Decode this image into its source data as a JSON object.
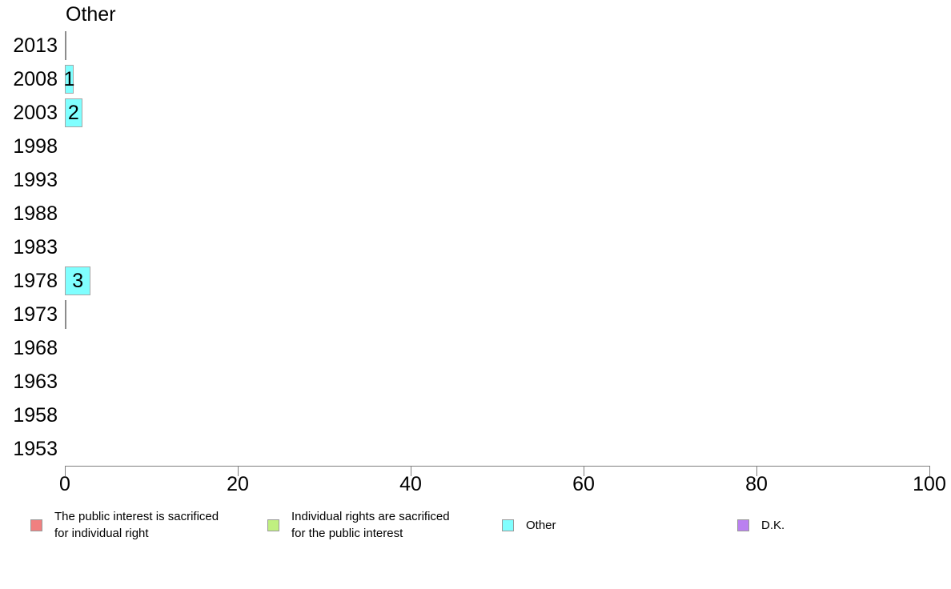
{
  "chart_data": {
    "type": "bar",
    "orientation": "horizontal",
    "title": "Other",
    "categories": [
      "2013",
      "2008",
      "2003",
      "1998",
      "1993",
      "1988",
      "1983",
      "1978",
      "1973",
      "1968",
      "1963",
      "1958",
      "1953"
    ],
    "series": [
      {
        "name": "Other",
        "color": "#80FFFF",
        "values": [
          0,
          1,
          2,
          null,
          null,
          null,
          null,
          3,
          0,
          null,
          null,
          null,
          null
        ]
      }
    ],
    "bar_labels": [
      "",
      "1",
      "2",
      "",
      "",
      "",
      "",
      "3",
      "",
      "",
      "",
      "",
      ""
    ],
    "xlabel": "",
    "ylabel": "",
    "xlim": [
      0,
      100
    ],
    "x_ticks": [
      "0",
      "20",
      "40",
      "60",
      "80",
      "100"
    ],
    "grid": false,
    "legend_position": "bottom",
    "legend": [
      {
        "label": "The public interest is sacrificed for individual right",
        "lines": [
          "The public interest is sacrificed",
          "for individual right"
        ],
        "color": "#F08080"
      },
      {
        "label": "Individual rights are sacrificed for the public interest",
        "lines": [
          "Individual rights are sacrificed",
          "for the public interest"
        ],
        "color": "#C0F080"
      },
      {
        "label": "Other",
        "lines": [
          "Other"
        ],
        "color": "#80FFFF"
      },
      {
        "label": "D.K.",
        "lines": [
          "D.K."
        ],
        "color": "#BA80F0"
      }
    ],
    "colors": {
      "bar_fill": "#80FFFF",
      "bar_border": "#A6A6A6",
      "axis": "#808080",
      "zero_bar_line": "#8C8C8C"
    }
  }
}
